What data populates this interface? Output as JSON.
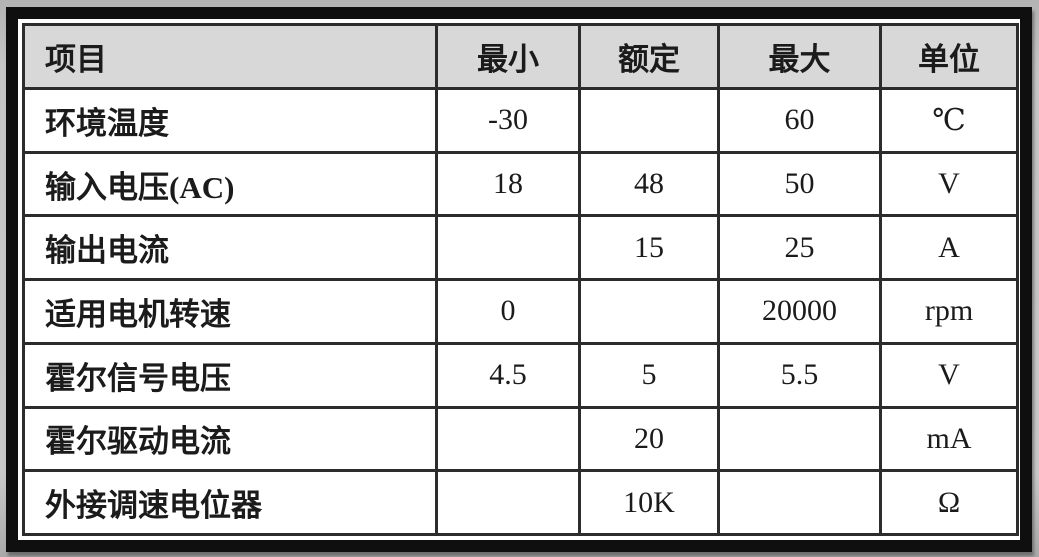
{
  "table": {
    "headers": {
      "item": "项目",
      "min": "最小",
      "rated": "额定",
      "max": "最大",
      "unit": "单位"
    },
    "rows": [
      {
        "item": "环境温度",
        "min": "-30",
        "rated": "",
        "max": "60",
        "unit": "℃"
      },
      {
        "item": "输入电压(AC)",
        "min": "18",
        "rated": "48",
        "max": "50",
        "unit": "V"
      },
      {
        "item": "输出电流",
        "min": "",
        "rated": "15",
        "max": "25",
        "unit": "A"
      },
      {
        "item": "适用电机转速",
        "min": "0",
        "rated": "",
        "max": "20000",
        "unit": "rpm"
      },
      {
        "item": "霍尔信号电压",
        "min": "4.5",
        "rated": "5",
        "max": "5.5",
        "unit": "V"
      },
      {
        "item": "霍尔驱动电流",
        "min": "",
        "rated": "20",
        "max": "",
        "unit": "mA"
      },
      {
        "item": "外接调速电位器",
        "min": "",
        "rated": "10K",
        "max": "",
        "unit": "Ω"
      }
    ],
    "colors": {
      "header_background": "#d8d8d8",
      "cell_background": "#ffffff",
      "border": "#2c2c2c",
      "outer_frame": "#0f0f0f",
      "text": "#1b1b1b",
      "page_background": "#c6c6c6"
    }
  }
}
